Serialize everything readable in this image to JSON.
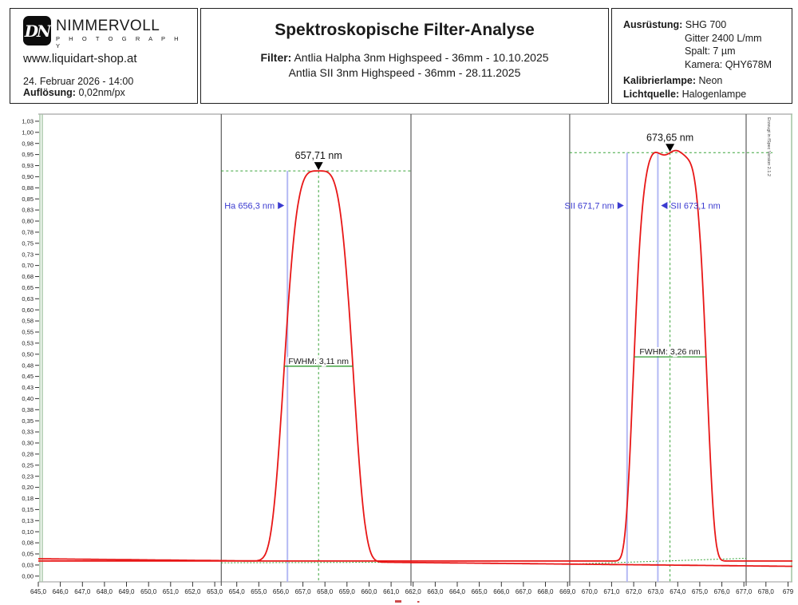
{
  "header": {
    "left": {
      "logo_monogram": "DN",
      "logo_main": "NIMMERVOLL",
      "logo_sub": "P H O T O G R A P H Y",
      "url": "www.liquidart-shop.at",
      "date": "24. Februar 2026 - 14:00",
      "resolution_label": "Auflösung:",
      "resolution_value": " 0,02nm/px"
    },
    "center": {
      "title": "Spektroskopische Filter-Analyse",
      "filter_label": "Filter:",
      "filter_line1": " Antlia Halpha 3nm Highspeed - 36mm - 10.10.2025",
      "filter_line2": "Antlia SII 3nm Highspeed - 36mm - 28.11.2025"
    },
    "right": {
      "equipment_label": "Ausrüstung:",
      "equipment_value": " SHG 700",
      "equipment_lines": [
        "Gitter 2400 L/mm",
        "Spalt: 7 µm",
        "Kamera: QHY678M"
      ],
      "cal_lamp_label": "Kalibrierlampe:",
      "cal_lamp_value": " Neon",
      "light_label": "Lichtquelle:",
      "light_value": " Halogenlampe"
    }
  },
  "watermark": "Erzeugt in fSpec Version 2.1.2",
  "chart_data": {
    "type": "line",
    "x_range": [
      645.0,
      679.2
    ],
    "x_tick_step": 1.0,
    "x_tick_labels": [
      "645,0",
      "646,0",
      "647,0",
      "648,0",
      "649,0",
      "650,0",
      "651,0",
      "652,0",
      "653,0",
      "654,0",
      "655,0",
      "656,0",
      "657,0",
      "658,0",
      "659,0",
      "660,0",
      "661,0",
      "662,0",
      "663,0",
      "664,0",
      "665,0",
      "666,0",
      "667,0",
      "668,0",
      "669,0",
      "670,0",
      "671,0",
      "672,0",
      "673,0",
      "674,0",
      "675,0",
      "676,0",
      "677,0",
      "678,0",
      "679"
    ],
    "y_range": [
      0.0,
      1.025
    ],
    "y_tick_step": 0.025,
    "y_tick_labels": [
      "0,00",
      "0,03",
      "0,05",
      "0,08",
      "0,10",
      "0,13",
      "0,15",
      "0,18",
      "0,20",
      "0,23",
      "0,25",
      "0,28",
      "0,30",
      "0,33",
      "0,35",
      "0,38",
      "0,40",
      "0,43",
      "0,45",
      "0,48",
      "0,50",
      "0,53",
      "0,55",
      "0,58",
      "0,60",
      "0,63",
      "0,65",
      "0,68",
      "0,70",
      "0,73",
      "0,75",
      "0,78",
      "0,80",
      "0,83",
      "0,85",
      "0,88",
      "0,90",
      "0,93",
      "0,95",
      "0,98",
      "1,00",
      "1,03"
    ],
    "series": [
      {
        "name": "Antlia Halpha 3nm Highspeed",
        "baseline_left": 0.039,
        "baseline_right": 0.022,
        "peak": {
          "center": 657.71,
          "height": 0.913,
          "fwhm": 3.11,
          "shape_order": 4,
          "ripple": 0.0
        }
      },
      {
        "name": "Antlia SII 3nm Highspeed",
        "baseline_left": 0.034,
        "baseline_right": 0.034,
        "peak": {
          "center": 673.65,
          "height": 0.954,
          "fwhm": 3.26,
          "shape_order": 6,
          "ripple": 0.005
        }
      }
    ],
    "peaks": [
      {
        "label": "657,71 nm",
        "center": 657.71,
        "height": 0.913,
        "fwhm": 3.11,
        "fwhm_label": "FWHM: 3,11 nm",
        "fwhm_level": 0.473,
        "level_span": [
          653.3,
          661.9
        ],
        "region": [
          653.3,
          661.9
        ]
      },
      {
        "label": "673,65 nm",
        "center": 673.65,
        "height": 0.954,
        "fwhm": 3.26,
        "fwhm_label": "FWHM: 3,26 nm",
        "fwhm_level": 0.494,
        "level_span": [
          669.1,
          678.3
        ],
        "region": [
          669.1,
          677.1
        ]
      }
    ],
    "reference_lines": [
      {
        "label": "Ha 656,3 nm",
        "x": 656.3,
        "label_side": "left",
        "top": 0.913
      },
      {
        "label": "SII 671,7 nm",
        "x": 671.7,
        "label_side": "left",
        "top": 0.954
      },
      {
        "label": "SII 673,1 nm",
        "x": 673.1,
        "label_side": "right",
        "top": 0.954
      }
    ],
    "baseline_fits": [
      {
        "x1": 653.3,
        "y1": 0.03,
        "x2": 661.9,
        "y2": 0.031
      },
      {
        "x1": 669.1,
        "y1": 0.027,
        "x2": 677.1,
        "y2": 0.04
      }
    ],
    "colors": {
      "curve": "#e81717",
      "annotation_green": "#39a339",
      "fwhm_green": "#2f9a2f",
      "reference_blue_line": "#b4b9f4",
      "reference_blue_text": "#3b3bd0",
      "boundary": "#5c5c5c",
      "border_green": "#a6c6a6",
      "axis_text": "#1a1a1a"
    },
    "legend": "none",
    "grid": "off"
  }
}
